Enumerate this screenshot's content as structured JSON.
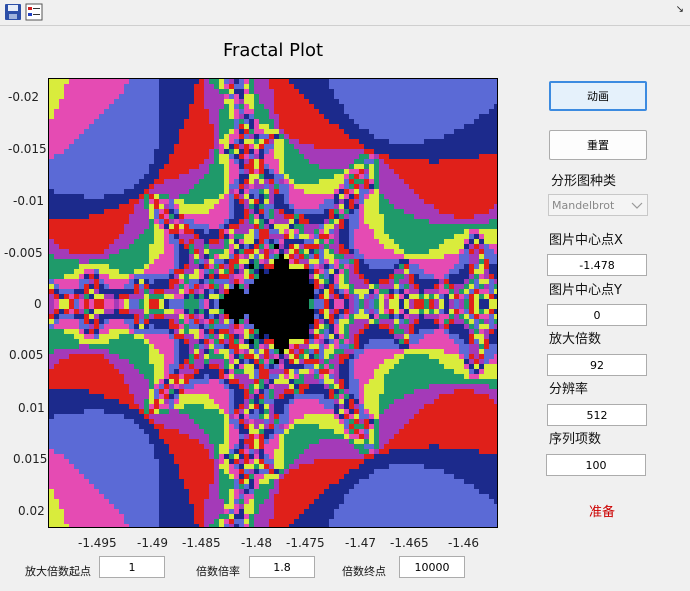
{
  "toolbar": {
    "save_icon": "save-icon",
    "legend_icon": "legend-icon",
    "dock_icon": "dock-arrow-icon"
  },
  "plot": {
    "title": "Fractal Plot",
    "x_ticks": [
      "-1.495",
      "-1.49",
      "-1.485",
      "-1.48",
      "-1.475",
      "-1.47",
      "-1.465",
      "-1.46"
    ],
    "y_ticks": [
      "-0.02",
      "-0.015",
      "-0.01",
      "-0.005",
      "0",
      "0.005",
      "0.01",
      "0.015",
      "0.02"
    ],
    "palette": [
      "#1c2a8c",
      "#e0201a",
      "#a43ab8",
      "#1f9a6a",
      "#d9ec3c",
      "#e54bb3",
      "#5b6ad6"
    ]
  },
  "controls": {
    "animate_label": "动画",
    "reset_label": "重置",
    "fractal_type_label": "分形图种类",
    "fractal_type_value": "Mandelbrot",
    "center_x_label": "图片中心点X",
    "center_x_value": "-1.478",
    "center_y_label": "图片中心点Y",
    "center_y_value": "0",
    "zoom_label": "放大倍数",
    "zoom_value": "92",
    "resolution_label": "分辨率",
    "resolution_value": "512",
    "iterations_label": "序列项数",
    "iterations_value": "100",
    "status_text": "准备"
  },
  "bottom": {
    "zoom_start_label": "放大倍数起点",
    "zoom_start_value": "1",
    "zoom_rate_label": "倍数倍率",
    "zoom_rate_value": "1.8",
    "zoom_end_label": "倍数终点",
    "zoom_end_value": "10000"
  }
}
